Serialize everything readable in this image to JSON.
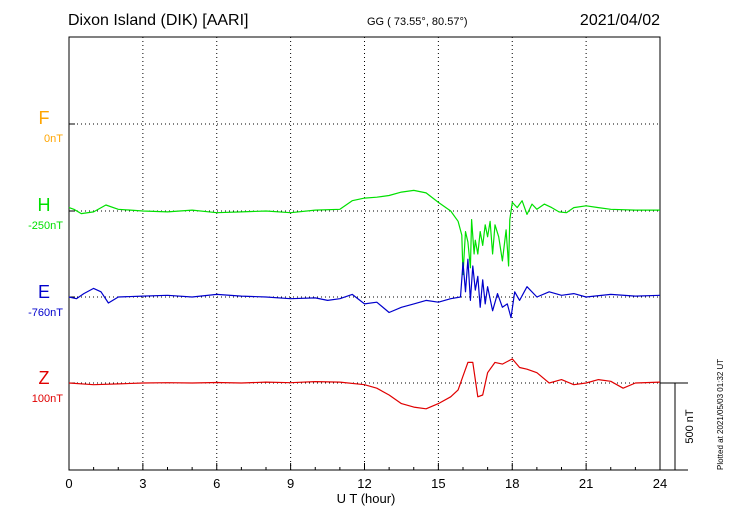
{
  "header": {
    "station": "Dixon Island (DIK)  [AARI]",
    "coords": "GG ( 73.55°,  80.57°)",
    "date": "2021/04/02"
  },
  "plotted_note": "Plotted at 2021/05/03 01:32 UT",
  "colors": {
    "F": "#FFA500",
    "H": "#00E000",
    "E": "#0000CC",
    "Z": "#E00000"
  },
  "chart_data": {
    "type": "line",
    "xlabel": "U T (hour)",
    "xlim": [
      0,
      24
    ],
    "x_ticks": [
      "0",
      "3",
      "6",
      "9",
      "12",
      "15",
      "18",
      "21",
      "24"
    ],
    "scale_bar": {
      "label": "500 nT",
      "value_nT": 500
    },
    "y_units": "nT",
    "y_direction": "each trace drawn relative to its own baseline; 500 nT per scale bar",
    "series": [
      {
        "name": "F",
        "baseline_label": "0nT",
        "color": "#FFA500",
        "x": [],
        "values": []
      },
      {
        "name": "H",
        "baseline_label": "-250nT",
        "color": "#00E000",
        "x": [
          0,
          0.2,
          0.5,
          1.0,
          1.5,
          2.0,
          3.0,
          4.0,
          5.0,
          6.0,
          7.0,
          8.0,
          9.0,
          10.0,
          11.0,
          11.5,
          12.0,
          12.5,
          13.0,
          13.5,
          14.0,
          14.5,
          15.0,
          15.5,
          15.8,
          15.95,
          16.0,
          16.1,
          16.2,
          16.3,
          16.35,
          16.45,
          16.5,
          16.6,
          16.7,
          16.8,
          16.9,
          17.0,
          17.1,
          17.2,
          17.3,
          17.45,
          17.6,
          17.75,
          17.85,
          17.9,
          18.0,
          18.2,
          18.4,
          18.6,
          18.8,
          19.0,
          19.3,
          19.6,
          19.9,
          20.2,
          20.5,
          21.0,
          21.5,
          22.0,
          23.0,
          24.0
        ],
        "values": [
          20,
          10,
          -15,
          -5,
          35,
          10,
          0,
          -5,
          5,
          -10,
          -5,
          0,
          -10,
          5,
          10,
          60,
          75,
          80,
          90,
          110,
          120,
          105,
          50,
          0,
          -60,
          -140,
          -370,
          -120,
          -180,
          -330,
          -50,
          -250,
          -170,
          -250,
          -120,
          -200,
          -80,
          -150,
          -60,
          -250,
          -80,
          -150,
          -290,
          -110,
          -320,
          -50,
          50,
          20,
          60,
          -20,
          40,
          10,
          40,
          20,
          -5,
          -10,
          20,
          30,
          20,
          10,
          5,
          5
        ]
      },
      {
        "name": "E",
        "baseline_label": "-760nT",
        "color": "#0000CC",
        "x": [
          0,
          0.3,
          0.6,
          1.0,
          1.3,
          1.6,
          2.0,
          3.0,
          4.0,
          5.0,
          6.0,
          7.0,
          8.0,
          9.0,
          10.0,
          10.5,
          11.0,
          11.5,
          12.0,
          12.5,
          13.0,
          13.5,
          14.0,
          14.5,
          15.0,
          15.5,
          15.9,
          16.0,
          16.1,
          16.2,
          16.3,
          16.4,
          16.5,
          16.6,
          16.7,
          16.8,
          16.9,
          17.0,
          17.2,
          17.4,
          17.6,
          17.8,
          17.95,
          18.1,
          18.3,
          18.6,
          19.0,
          19.5,
          20.0,
          20.5,
          21.0,
          22.0,
          23.0,
          24.0
        ],
        "values": [
          0,
          -10,
          20,
          50,
          30,
          -35,
          0,
          5,
          10,
          0,
          15,
          5,
          0,
          -10,
          -5,
          -20,
          -10,
          15,
          -40,
          -30,
          -90,
          -60,
          -40,
          -20,
          -30,
          -10,
          0,
          200,
          30,
          220,
          -20,
          180,
          40,
          120,
          -60,
          100,
          -40,
          60,
          -80,
          20,
          -60,
          -40,
          -120,
          30,
          -20,
          60,
          0,
          30,
          10,
          20,
          0,
          15,
          5,
          10
        ]
      },
      {
        "name": "Z",
        "baseline_label": "100nT",
        "color": "#E00000",
        "x": [
          0,
          1,
          2,
          3,
          4,
          5,
          6,
          7,
          8,
          9,
          10,
          11,
          12,
          12.5,
          13.0,
          13.5,
          14.0,
          14.5,
          15.0,
          15.5,
          15.8,
          16.0,
          16.2,
          16.4,
          16.6,
          16.8,
          17.0,
          17.3,
          17.6,
          18.0,
          18.3,
          18.6,
          19.0,
          19.5,
          20.0,
          20.5,
          21.0,
          21.5,
          22.0,
          22.5,
          23.0,
          24.0
        ],
        "values": [
          0,
          -10,
          -5,
          0,
          2,
          0,
          3,
          0,
          5,
          2,
          8,
          5,
          -10,
          -30,
          -70,
          -120,
          -140,
          -150,
          -120,
          -80,
          -40,
          40,
          120,
          120,
          -80,
          -70,
          60,
          120,
          110,
          140,
          90,
          80,
          60,
          0,
          20,
          -10,
          0,
          20,
          10,
          -30,
          0,
          5
        ]
      }
    ]
  }
}
